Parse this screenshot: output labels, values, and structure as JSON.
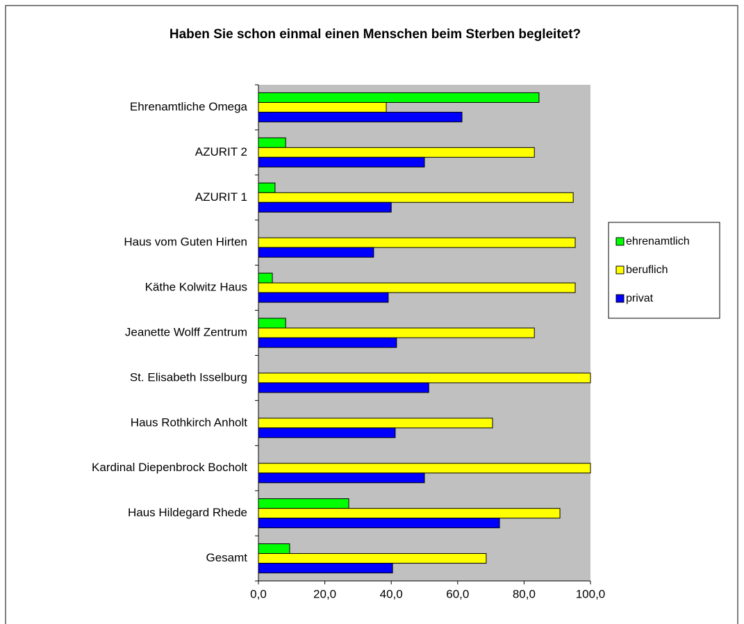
{
  "chart_data": {
    "type": "barh",
    "title": "Haben Sie schon einmal einen Menschen beim Sterben begleitet?",
    "categories": [
      "Ehrenamtliche Omega",
      "AZURIT 2",
      "AZURIT 1",
      "Haus vom Guten Hirten",
      "Käthe Kolwitz Haus",
      "Jeanette Wolff Zentrum",
      "St. Elisabeth Isselburg",
      "Haus Rothkirch Anholt",
      "Kardinal Diepenbrock Bocholt",
      "Haus Hildegard Rhede",
      "Gesamt"
    ],
    "series": [
      {
        "name": "ehrenamtlich",
        "color": "#00ff00",
        "values": [
          84.5,
          8.2,
          5.0,
          0,
          4.2,
          8.2,
          0,
          0,
          0,
          27.2,
          9.4
        ]
      },
      {
        "name": "beruflich",
        "color": "#ffff00",
        "values": [
          38.5,
          83.1,
          94.8,
          95.4,
          95.4,
          83.1,
          100,
          70.5,
          100,
          90.8,
          68.6
        ]
      },
      {
        "name": "privat",
        "color": "#0000ff",
        "values": [
          61.3,
          50.0,
          40.0,
          34.7,
          39.1,
          41.6,
          51.3,
          41.2,
          50.0,
          72.6,
          40.4
        ]
      }
    ],
    "xlim": [
      0,
      100
    ],
    "xticks": [
      {
        "value": 0,
        "label": "0,0"
      },
      {
        "value": 20,
        "label": "20,0"
      },
      {
        "value": 40,
        "label": "40,0"
      },
      {
        "value": 60,
        "label": "60,0"
      },
      {
        "value": 80,
        "label": "80,0"
      },
      {
        "value": 100,
        "label": "100,0"
      }
    ],
    "legend": "right",
    "plot_background": "#c0c0c0"
  }
}
